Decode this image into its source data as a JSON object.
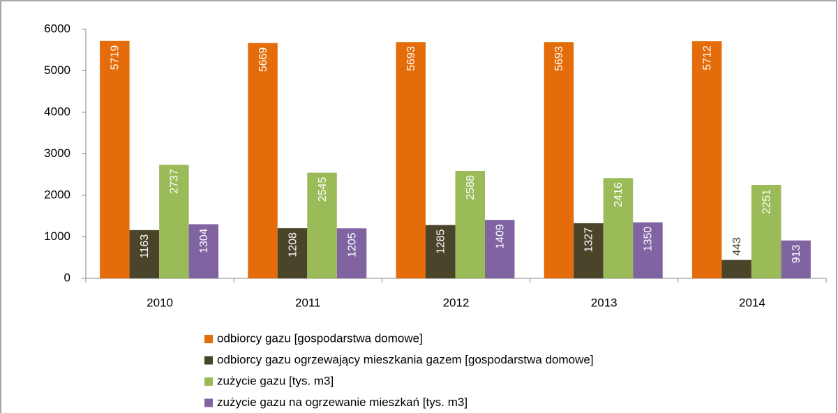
{
  "chart_data": {
    "type": "bar",
    "categories": [
      "2010",
      "2011",
      "2012",
      "2013",
      "2014"
    ],
    "series": [
      {
        "name": "odbiorcy gazu [gospodarstwa  domowe]",
        "color": "#E46C0A",
        "values": [
          5719,
          5669,
          5693,
          5693,
          5712
        ]
      },
      {
        "name": "odbiorcy gazu ogrzewający mieszkania gazem [gospodarstwa domowe]",
        "color": "#4A452A",
        "values": [
          1163,
          1208,
          1285,
          1327,
          443
        ]
      },
      {
        "name": "zużycie gazu [tys. m3]",
        "color": "#9BBB59",
        "values": [
          2737,
          2545,
          2588,
          2416,
          2251
        ]
      },
      {
        "name": "zużycie gazu na ogrzewanie mieszkań [tys. m3]",
        "color": "#8064A2",
        "values": [
          1304,
          1205,
          1409,
          1350,
          913
        ]
      }
    ],
    "ylim": [
      0,
      6000
    ],
    "yticks": [
      0,
      1000,
      2000,
      3000,
      4000,
      5000,
      6000
    ],
    "legend": "bottom"
  }
}
